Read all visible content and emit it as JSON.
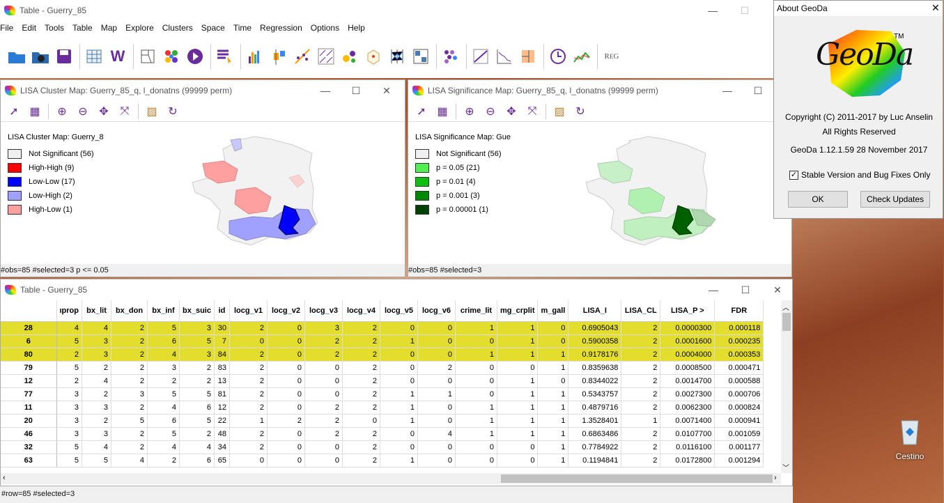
{
  "main_window": {
    "title": "Table - Guerry_85"
  },
  "menu": [
    "File",
    "Edit",
    "Tools",
    "Table",
    "Map",
    "Explore",
    "Clusters",
    "Space",
    "Time",
    "Regression",
    "Options",
    "Help"
  ],
  "cluster_map": {
    "title": "LISA Cluster Map: Guerry_85_q, l_donatns (99999 perm)",
    "legend_title": "LISA Cluster Map: Guerry_8",
    "legend": [
      {
        "label": "Not Significant (56)",
        "color": "#f0f0f0"
      },
      {
        "label": "High-High (9)",
        "color": "#ff0000"
      },
      {
        "label": "Low-Low (17)",
        "color": "#0000ff"
      },
      {
        "label": "Low-High (2)",
        "color": "#a0a0ff"
      },
      {
        "label": "High-Low (1)",
        "color": "#ffa0a0"
      }
    ],
    "status": "#obs=85 #selected=3   p <= 0.05"
  },
  "sig_map": {
    "title": "LISA Significance Map: Guerry_85_q, l_donatns (99999 perm)",
    "legend_title": "LISA Significance Map: Gue",
    "legend": [
      {
        "label": "Not Significant (56)",
        "color": "#f0f0f0"
      },
      {
        "label": "p = 0.05 (21)",
        "color": "#50f050"
      },
      {
        "label": "p = 0.01 (4)",
        "color": "#10c010"
      },
      {
        "label": "p = 0.001 (3)",
        "color": "#008800"
      },
      {
        "label": "p = 0.00001 (1)",
        "color": "#004000"
      }
    ],
    "status": "#obs=85 #selected=3"
  },
  "table": {
    "title": "Table - Guerry_85",
    "columns": [
      "ıprop",
      "bx_lit",
      "bx_don",
      "bx_inf",
      "bx_suic",
      "id",
      "locg_v1",
      "locg_v2",
      "locg_v3",
      "locg_v4",
      "locg_v5",
      "locg_v6",
      "crime_lit",
      "mg_crplit",
      "m_gall",
      "LISA_I",
      "LISA_CL",
      "LISA_P >",
      "FDR"
    ],
    "rows": [
      {
        "h": "28",
        "sel": true,
        "c": [
          "4",
          "4",
          "2",
          "5",
          "3",
          "30",
          "2",
          "0",
          "3",
          "2",
          "0",
          "0",
          "1",
          "1",
          "0",
          "0.6905043",
          "2",
          "0.0000300",
          "0.000118"
        ]
      },
      {
        "h": "6",
        "sel": true,
        "c": [
          "5",
          "3",
          "2",
          "6",
          "5",
          "7",
          "0",
          "0",
          "2",
          "2",
          "1",
          "0",
          "0",
          "1",
          "0",
          "0.5900358",
          "2",
          "0.0001600",
          "0.000235"
        ]
      },
      {
        "h": "80",
        "sel": true,
        "c": [
          "2",
          "3",
          "2",
          "4",
          "3",
          "84",
          "2",
          "0",
          "2",
          "2",
          "0",
          "0",
          "1",
          "1",
          "1",
          "0.9178176",
          "2",
          "0.0004000",
          "0.000353"
        ]
      },
      {
        "h": "79",
        "sel": false,
        "c": [
          "5",
          "2",
          "2",
          "3",
          "2",
          "83",
          "2",
          "0",
          "0",
          "2",
          "0",
          "2",
          "0",
          "0",
          "1",
          "0.8359638",
          "2",
          "0.0008500",
          "0.000471"
        ]
      },
      {
        "h": "12",
        "sel": false,
        "c": [
          "2",
          "4",
          "2",
          "2",
          "2",
          "13",
          "2",
          "0",
          "0",
          "2",
          "0",
          "0",
          "0",
          "1",
          "0",
          "0.8344022",
          "2",
          "0.0014700",
          "0.000588"
        ]
      },
      {
        "h": "77",
        "sel": false,
        "c": [
          "3",
          "2",
          "3",
          "5",
          "5",
          "81",
          "2",
          "0",
          "0",
          "2",
          "1",
          "1",
          "0",
          "1",
          "1",
          "0.5343757",
          "2",
          "0.0027300",
          "0.000706"
        ]
      },
      {
        "h": "11",
        "sel": false,
        "c": [
          "3",
          "3",
          "2",
          "4",
          "6",
          "12",
          "2",
          "0",
          "2",
          "2",
          "1",
          "0",
          "1",
          "1",
          "1",
          "0.4879716",
          "2",
          "0.0062300",
          "0.000824"
        ]
      },
      {
        "h": "20",
        "sel": false,
        "c": [
          "3",
          "2",
          "5",
          "6",
          "5",
          "22",
          "1",
          "2",
          "2",
          "0",
          "1",
          "0",
          "1",
          "1",
          "1",
          "1.3528401",
          "1",
          "0.0071400",
          "0.000941"
        ]
      },
      {
        "h": "46",
        "sel": false,
        "c": [
          "3",
          "3",
          "2",
          "5",
          "2",
          "48",
          "2",
          "0",
          "2",
          "2",
          "0",
          "4",
          "1",
          "1",
          "1",
          "0.6863486",
          "2",
          "0.0107700",
          "0.001059"
        ]
      },
      {
        "h": "32",
        "sel": false,
        "c": [
          "5",
          "4",
          "2",
          "4",
          "4",
          "34",
          "2",
          "0",
          "0",
          "2",
          "0",
          "0",
          "0",
          "0",
          "1",
          "0.7784922",
          "2",
          "0.0116100",
          "0.001177"
        ]
      },
      {
        "h": "63",
        "sel": false,
        "c": [
          "5",
          "5",
          "4",
          "2",
          "6",
          "65",
          "0",
          "0",
          "0",
          "2",
          "1",
          "0",
          "0",
          "0",
          "1",
          "0.1194841",
          "2",
          "0.0172800",
          "0.001294"
        ]
      }
    ],
    "status": "#row=85 #selected=3"
  },
  "about": {
    "title": "About GeoDa",
    "logo_text": "GeoDa",
    "tm": "TM",
    "copyright": "Copyright (C) 2011-2017 by Luc Anselin",
    "rights": "All Rights Reserved",
    "version": "GeoDa 1.12.1.59 28 November 2017",
    "checkbox_label": "Stable Version and Bug Fixes Only",
    "ok": "OK",
    "check_updates": "Check Updates"
  },
  "desktop": {
    "recycle_label": "Cestino"
  }
}
